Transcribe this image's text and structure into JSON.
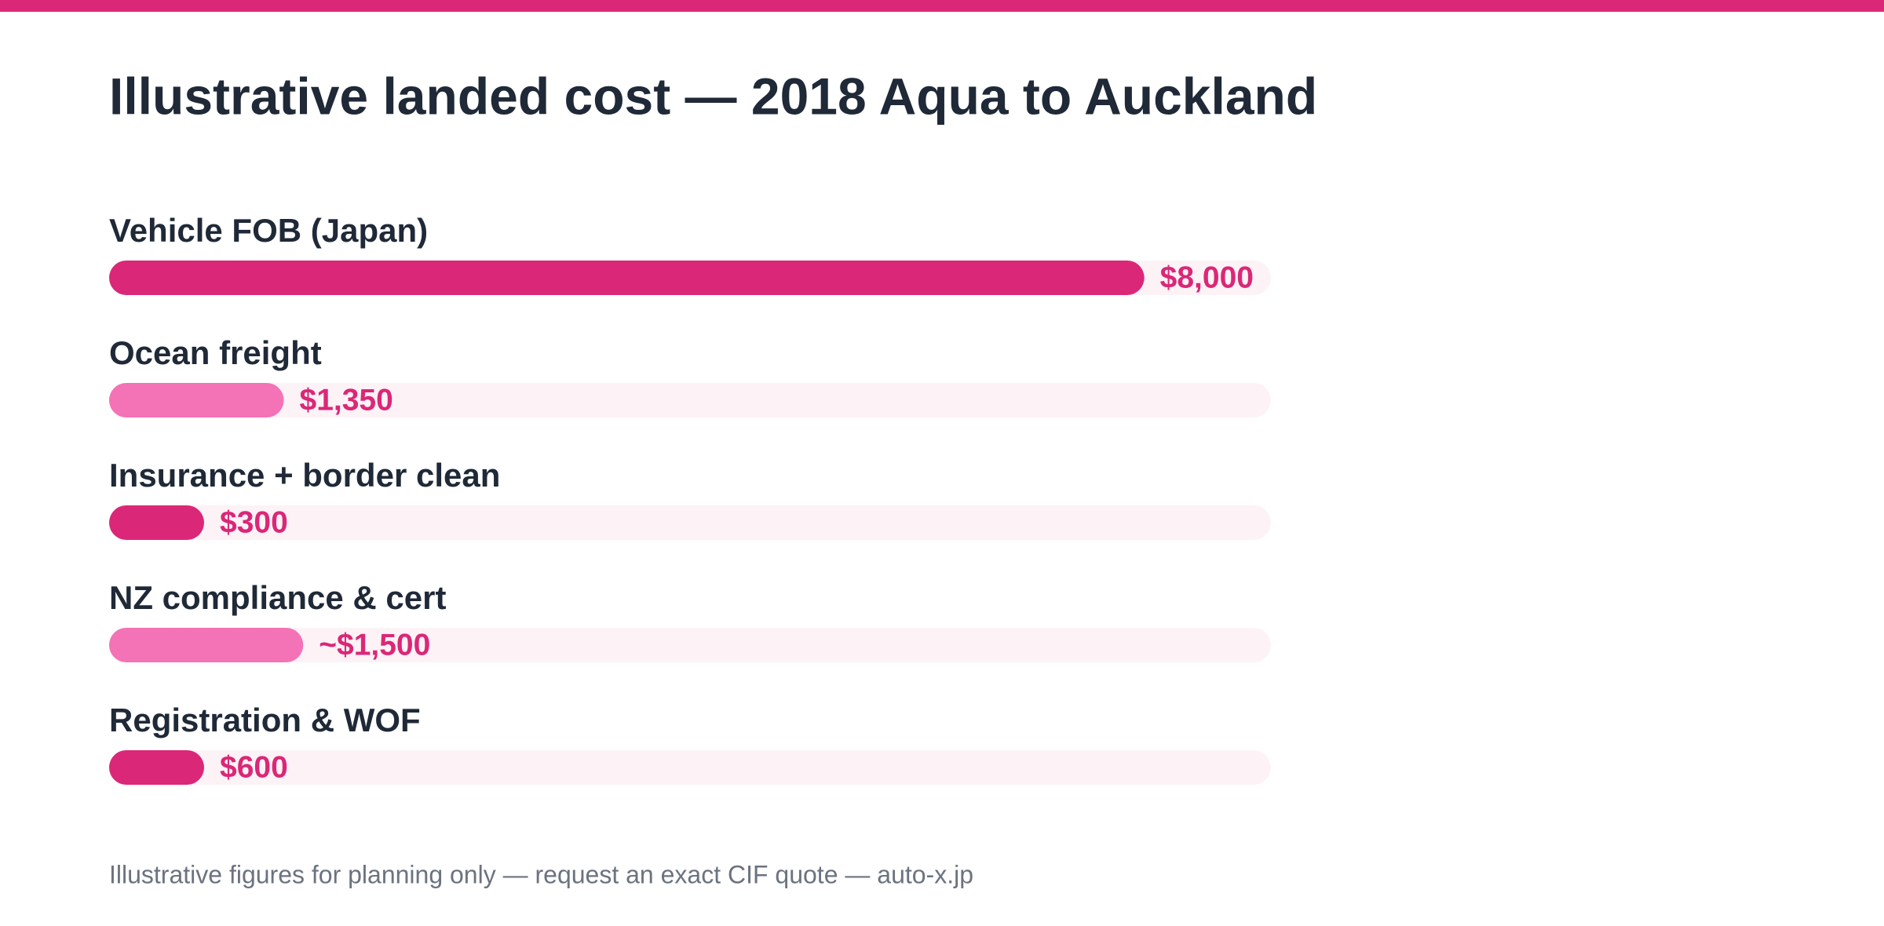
{
  "chart_data": {
    "type": "bar",
    "orientation": "horizontal",
    "title": "Illustrative landed cost — 2018 Aqua to Auckland",
    "categories": [
      "Vehicle FOB (Japan)",
      "Ocean freight",
      "Insurance + border clean",
      "NZ compliance & cert",
      "Registration & WOF"
    ],
    "values": [
      8000,
      1350,
      300,
      1500,
      600
    ],
    "value_labels": [
      "$8,000",
      "$1,350",
      "$300",
      "~$1,500",
      "$600"
    ],
    "colors": [
      "#db2777",
      "#f472b6",
      "#db2777",
      "#f472b6",
      "#db2777"
    ],
    "footnote": "Illustrative figures for planning only — request an exact CIF quote — auto-x.jp"
  }
}
